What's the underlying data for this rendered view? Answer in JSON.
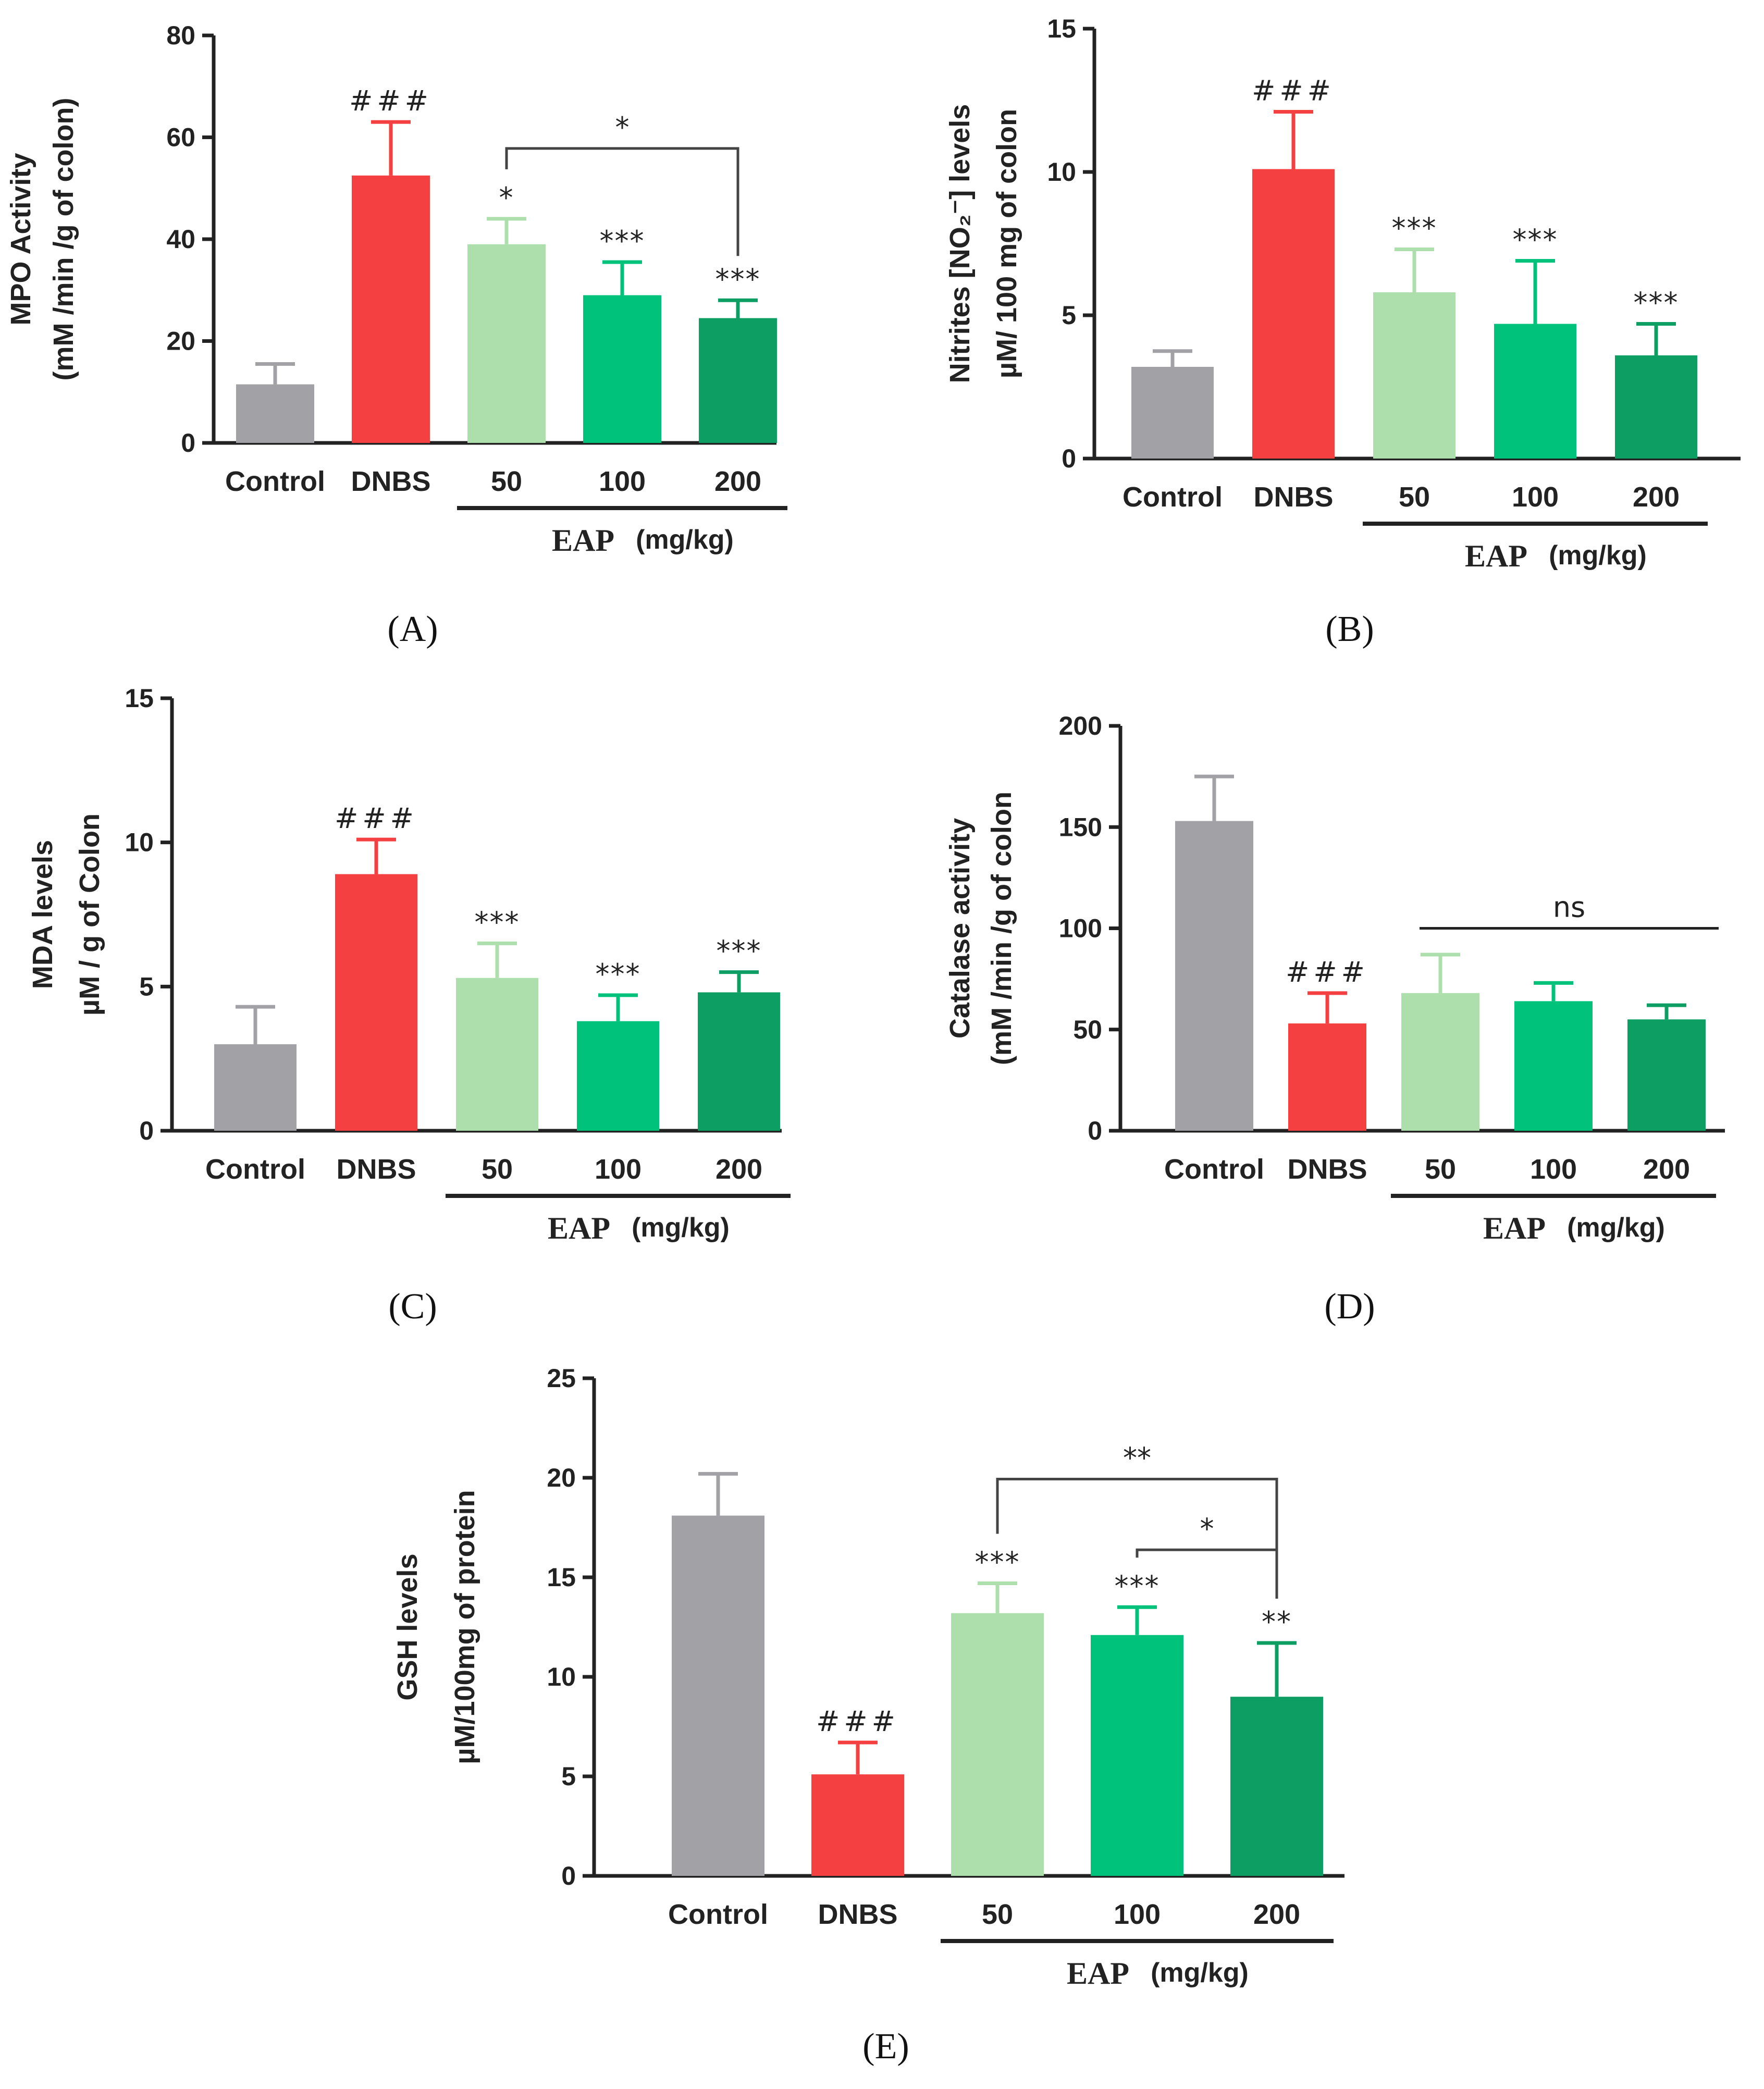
{
  "colors": {
    "Control": "#a2a1a6",
    "DNBS": "#f44040",
    "EAP50": "#acdfab",
    "EAP100": "#00c27a",
    "EAP200": "#0c9e62",
    "axis": "#222222"
  },
  "chart_data": [
    {
      "panel": "A",
      "type": "bar",
      "categories": [
        "Control",
        "DNBS",
        "50",
        "100",
        "200"
      ],
      "values": [
        11.5,
        52.5,
        39,
        29,
        24.5
      ],
      "errors": [
        4,
        10.5,
        5,
        6.5,
        3.5
      ],
      "ylabel_lines": [
        "MPO Activity",
        "(mM /min /g of colon)"
      ],
      "ylim": [
        0,
        80
      ],
      "yticks": [
        0,
        20,
        40,
        60,
        80
      ],
      "group_label": "EAP",
      "group_unit": "(mg/kg)",
      "annotations": [
        "",
        "###",
        "*",
        "***",
        "***"
      ],
      "brackets": [
        {
          "from": 2,
          "to": 4,
          "label": "*"
        }
      ]
    },
    {
      "panel": "B",
      "type": "bar",
      "categories": [
        "Control",
        "DNBS",
        "50",
        "100",
        "200"
      ],
      "values": [
        3.2,
        10.1,
        5.8,
        4.7,
        3.6
      ],
      "errors": [
        0.55,
        2.0,
        1.5,
        2.2,
        1.1
      ],
      "ylabel_lines": [
        "Nitrites [NO₂⁻] levels",
        "µM/ 100 mg of colon"
      ],
      "ylim": [
        0,
        15
      ],
      "yticks": [
        0,
        5,
        10,
        15
      ],
      "group_label": "EAP",
      "group_unit": "(mg/kg)",
      "annotations": [
        "",
        "###",
        "***",
        "***",
        "***"
      ],
      "brackets": []
    },
    {
      "panel": "C",
      "type": "bar",
      "categories": [
        "Control",
        "DNBS",
        "50",
        "100",
        "200"
      ],
      "values": [
        3.0,
        8.9,
        5.3,
        3.8,
        4.8
      ],
      "errors": [
        1.3,
        1.2,
        1.2,
        0.9,
        0.7
      ],
      "ylabel_lines": [
        "MDA levels",
        "µM / g of Colon"
      ],
      "ylim": [
        0,
        15
      ],
      "yticks": [
        0,
        5,
        10,
        15
      ],
      "group_label": "EAP",
      "group_unit": "(mg/kg)",
      "annotations": [
        "",
        "###",
        "***",
        "***",
        "***"
      ],
      "brackets": []
    },
    {
      "panel": "D",
      "type": "bar",
      "categories": [
        "Control",
        "DNBS",
        "50",
        "100",
        "200"
      ],
      "values": [
        153,
        53,
        68,
        64,
        55
      ],
      "errors": [
        22,
        15,
        19,
        9,
        7
      ],
      "ylabel_lines": [
        "Catalase activity",
        "(mM /min /g of colon"
      ],
      "ylim": [
        0,
        200
      ],
      "yticks": [
        0,
        50,
        100,
        150,
        200
      ],
      "group_label": "EAP",
      "group_unit": "(mg/kg)",
      "annotations": [
        "",
        "###",
        "",
        "",
        ""
      ],
      "brackets": [
        {
          "from": 2,
          "to": 4,
          "label": "ns",
          "flat": true
        }
      ]
    },
    {
      "panel": "E",
      "type": "bar",
      "categories": [
        "Control",
        "DNBS",
        "50",
        "100",
        "200"
      ],
      "values": [
        18.1,
        5.1,
        13.2,
        12.1,
        9.0
      ],
      "errors": [
        2.1,
        1.6,
        1.5,
        1.4,
        2.7
      ],
      "ylabel_lines": [
        "GSH levels",
        "µM/100mg of protein"
      ],
      "ylim": [
        0,
        25
      ],
      "yticks": [
        0,
        5,
        10,
        15,
        20,
        25
      ],
      "group_label": "EAP",
      "group_unit": "(mg/kg)",
      "annotations": [
        "",
        "###",
        "***",
        "***",
        "**"
      ],
      "brackets": [
        {
          "from": 2,
          "to": 4,
          "label": "**"
        },
        {
          "from": 3,
          "to": 4,
          "label": "*"
        }
      ]
    }
  ],
  "panel_labels": [
    "(A)",
    "(B)",
    "(C)",
    "(D)",
    "(E)"
  ]
}
